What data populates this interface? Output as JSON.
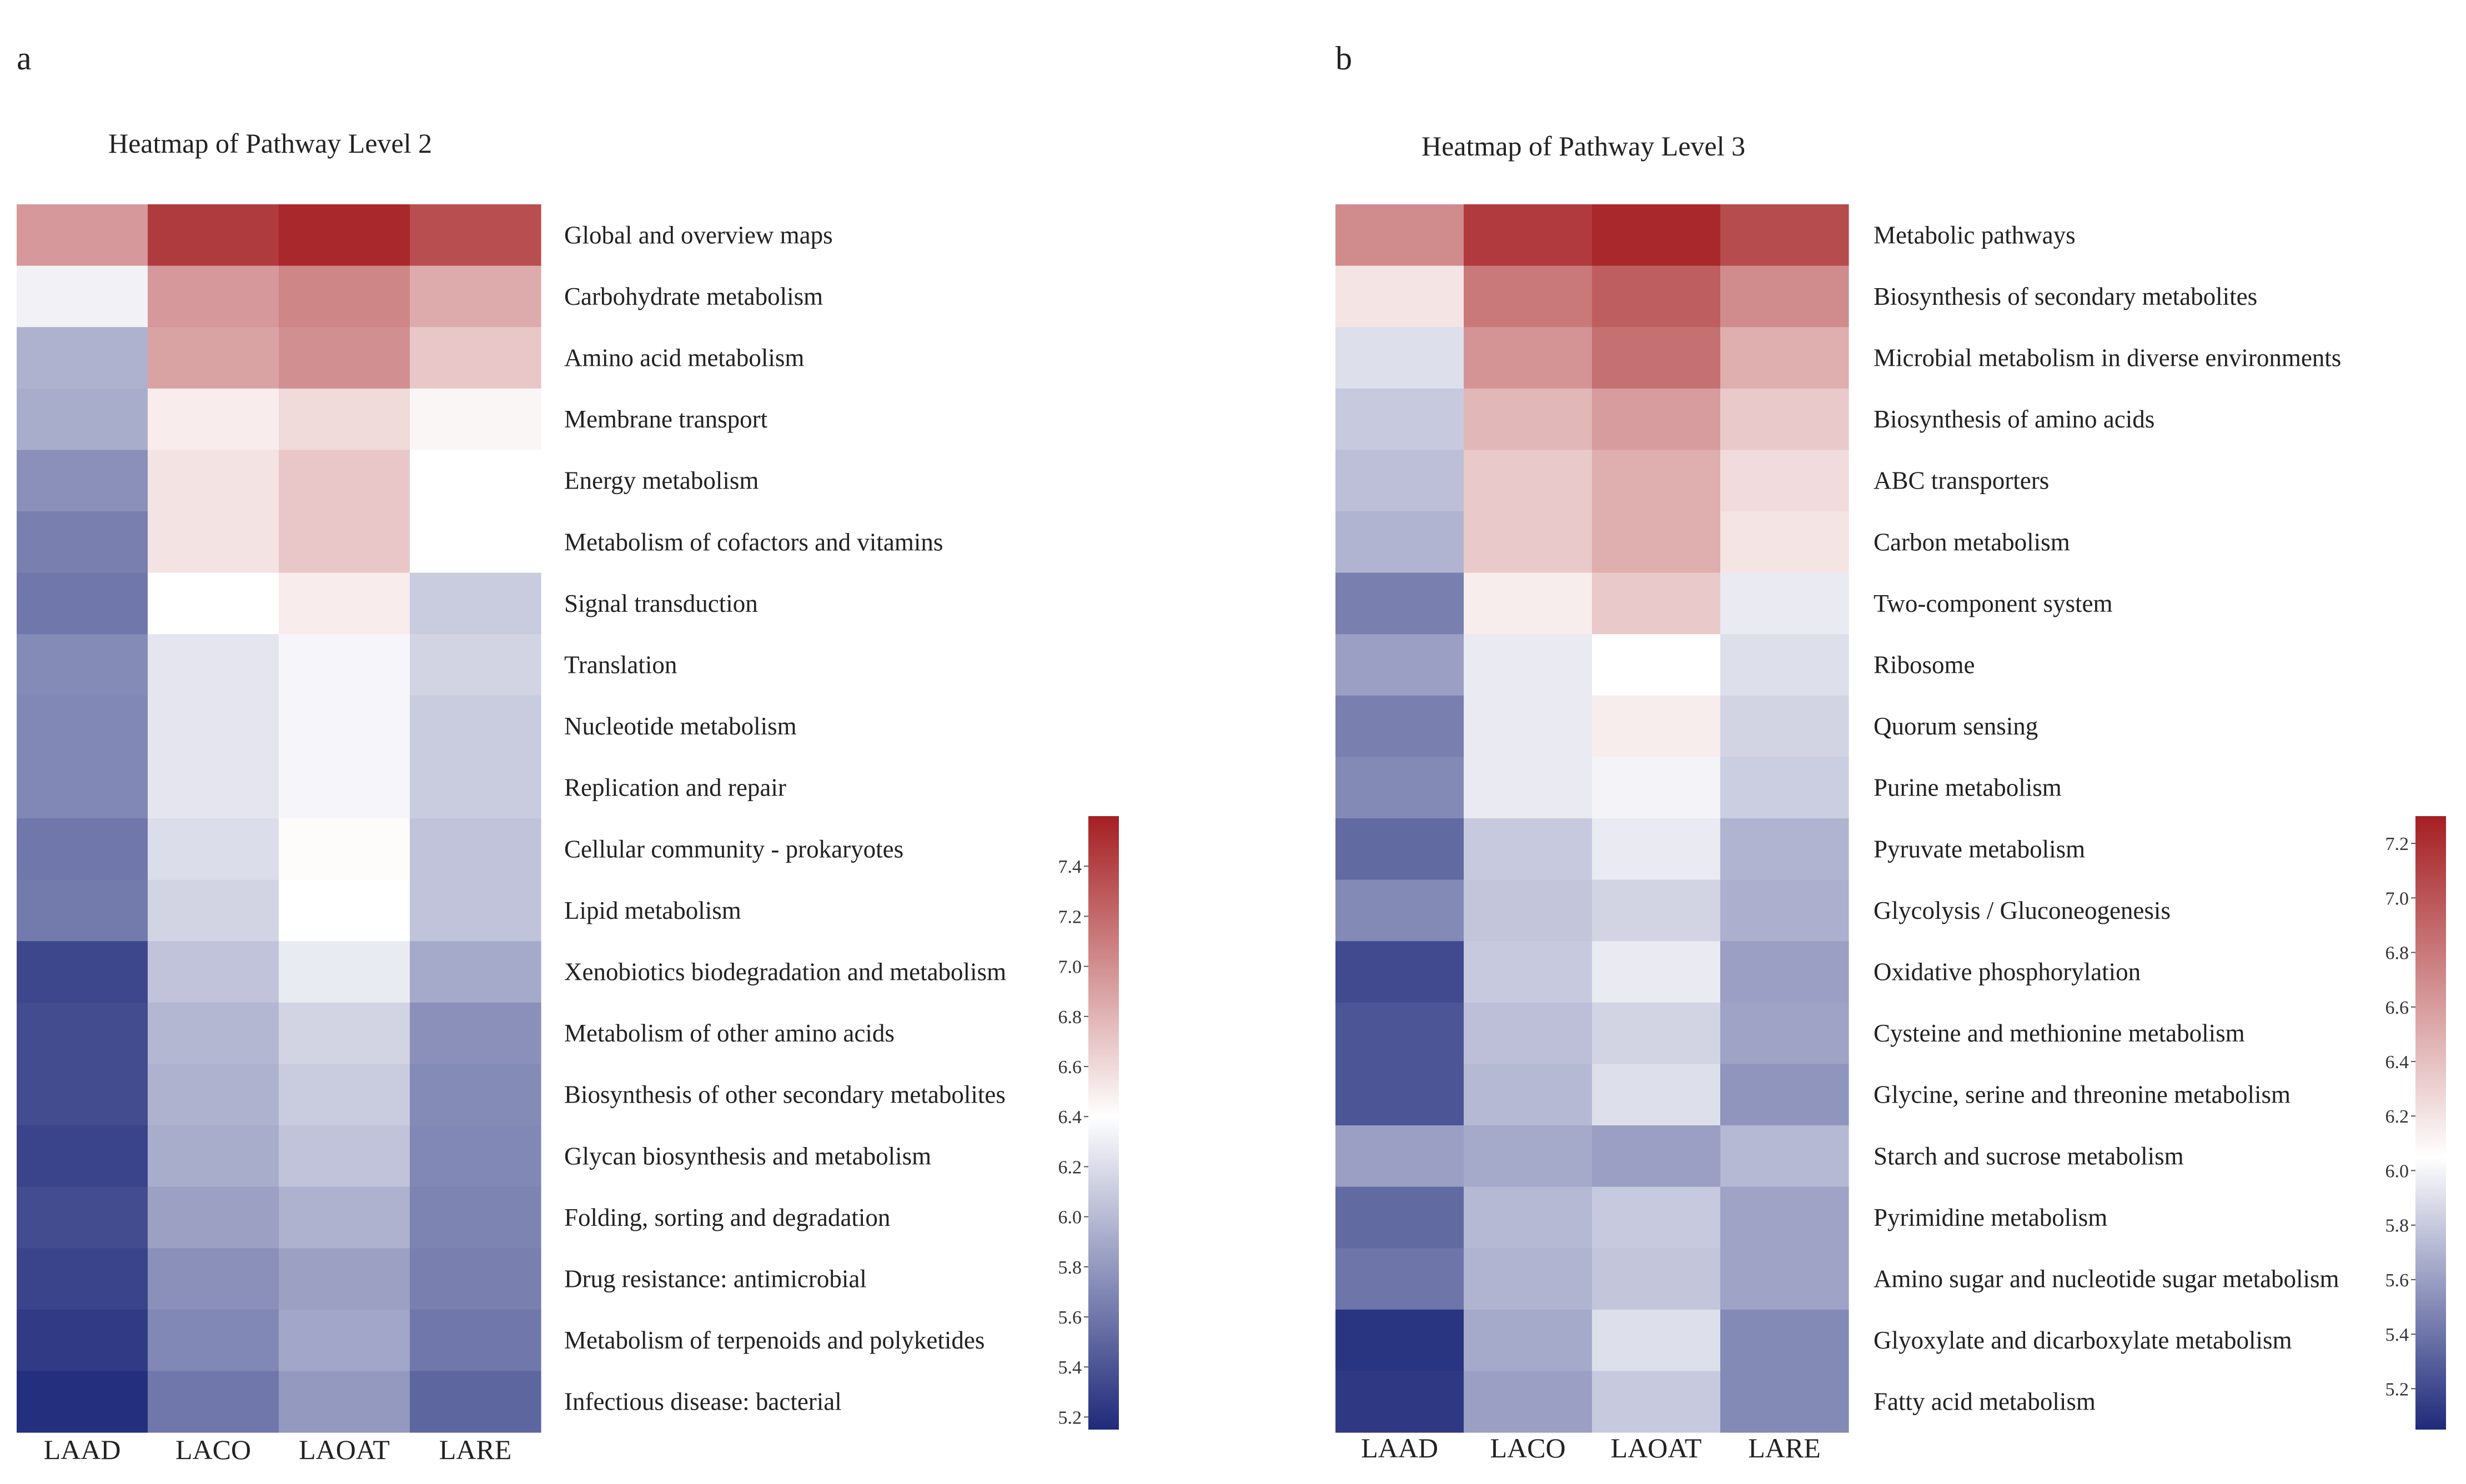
{
  "panels": [
    {
      "label": "a",
      "chart_data": {
        "type": "heatmap",
        "title": "Heatmap of Pathway Level 2",
        "columns": [
          "LAAD",
          "LACO",
          "LAOAT",
          "LARE"
        ],
        "rows": [
          "Global and overview maps",
          "Carbohydrate metabolism",
          "Amino acid metabolism",
          "Membrane transport",
          "Energy metabolism",
          "Metabolism of cofactors and vitamins",
          "Signal transduction",
          "Translation",
          "Nucleotide metabolism",
          "Replication and repair",
          "Cellular community - prokaryotes",
          "Lipid metabolism",
          "Xenobiotics biodegradation and metabolism",
          "Metabolism of other amino acids",
          "Biosynthesis of other secondary metabolites",
          "Glycan biosynthesis and metabolism",
          "Folding, sorting and degradation",
          "Drug resistance: antimicrobial",
          "Metabolism of terpenoids and polyketides",
          "Infectious disease: bacterial"
        ],
        "values": [
          [
            6.95,
            7.45,
            7.55,
            7.35
          ],
          [
            6.32,
            6.95,
            7.05,
            6.85
          ],
          [
            5.95,
            6.9,
            7.0,
            6.7
          ],
          [
            5.92,
            6.5,
            6.6,
            6.45
          ],
          [
            5.75,
            6.55,
            6.7,
            6.4
          ],
          [
            5.65,
            6.55,
            6.7,
            6.4
          ],
          [
            5.6,
            6.4,
            6.5,
            6.1
          ],
          [
            5.72,
            6.25,
            6.35,
            6.15
          ],
          [
            5.7,
            6.25,
            6.35,
            6.1
          ],
          [
            5.7,
            6.25,
            6.35,
            6.1
          ],
          [
            5.6,
            6.2,
            6.42,
            6.05
          ],
          [
            5.62,
            6.15,
            6.4,
            6.05
          ],
          [
            5.32,
            6.05,
            6.28,
            5.9
          ],
          [
            5.35,
            5.98,
            6.15,
            5.75
          ],
          [
            5.35,
            5.95,
            6.1,
            5.72
          ],
          [
            5.3,
            5.92,
            6.05,
            5.7
          ],
          [
            5.35,
            5.85,
            5.95,
            5.68
          ],
          [
            5.3,
            5.75,
            5.85,
            5.65
          ],
          [
            5.25,
            5.7,
            5.88,
            5.6
          ],
          [
            5.18,
            5.6,
            5.8,
            5.5
          ]
        ],
        "color_scale": {
          "min": 5.15,
          "mid": 6.4,
          "max": 7.6,
          "low": "#1f2a7a",
          "midColor": "#ffffff",
          "high": "#a51f22"
        },
        "colorbar_ticks": [
          "5.2",
          "5.4",
          "5.6",
          "5.8",
          "6.0",
          "6.2",
          "6.4",
          "6.6",
          "6.8",
          "7.0",
          "7.2",
          "7.4"
        ]
      }
    },
    {
      "label": "b",
      "chart_data": {
        "type": "heatmap",
        "title": "Heatmap of Pathway Level 3",
        "columns": [
          "LAAD",
          "LACO",
          "LAOAT",
          "LARE"
        ],
        "rows": [
          "Metabolic pathways",
          "Biosynthesis of secondary metabolites",
          "Microbial metabolism in diverse environments",
          "Biosynthesis of amino acids",
          "ABC transporters",
          "Carbon metabolism",
          "Two-component system",
          "Ribosome",
          "Quorum sensing",
          "Purine metabolism",
          "Pyruvate metabolism",
          "Glycolysis / Gluconeogenesis",
          "Oxidative phosphorylation",
          "Cysteine and methionine metabolism",
          "Glycine, serine and threonine metabolism",
          "Starch and sucrose metabolism",
          "Pyrimidine metabolism",
          "Amino sugar and nucleotide sugar metabolism",
          "Glyoxylate and dicarboxylate metabolism",
          "Fatty acid metabolism"
        ],
        "values": [
          [
            6.7,
            7.15,
            7.25,
            7.05
          ],
          [
            6.2,
            6.8,
            6.95,
            6.7
          ],
          [
            5.9,
            6.65,
            6.85,
            6.5
          ],
          [
            5.8,
            6.45,
            6.6,
            6.35
          ],
          [
            5.75,
            6.35,
            6.5,
            6.25
          ],
          [
            5.7,
            6.35,
            6.5,
            6.2
          ],
          [
            5.45,
            6.15,
            6.35,
            5.95
          ],
          [
            5.6,
            5.95,
            6.05,
            5.9
          ],
          [
            5.45,
            5.95,
            6.15,
            5.85
          ],
          [
            5.5,
            5.95,
            6.0,
            5.82
          ],
          [
            5.35,
            5.8,
            5.95,
            5.7
          ],
          [
            5.5,
            5.78,
            5.85,
            5.68
          ],
          [
            5.2,
            5.8,
            5.95,
            5.6
          ],
          [
            5.25,
            5.75,
            5.85,
            5.62
          ],
          [
            5.25,
            5.72,
            5.9,
            5.55
          ],
          [
            5.6,
            5.65,
            5.6,
            5.72
          ],
          [
            5.35,
            5.72,
            5.8,
            5.62
          ],
          [
            5.4,
            5.7,
            5.78,
            5.62
          ],
          [
            5.1,
            5.65,
            5.9,
            5.5
          ],
          [
            5.12,
            5.6,
            5.8,
            5.5
          ]
        ],
        "color_scale": {
          "min": 5.05,
          "mid": 6.05,
          "max": 7.3,
          "low": "#1f2a7a",
          "midColor": "#ffffff",
          "high": "#a51f22"
        },
        "colorbar_ticks": [
          "5.2",
          "5.4",
          "5.6",
          "5.8",
          "6.0",
          "6.2",
          "6.4",
          "6.6",
          "6.8",
          "7.0",
          "7.2"
        ]
      }
    }
  ]
}
